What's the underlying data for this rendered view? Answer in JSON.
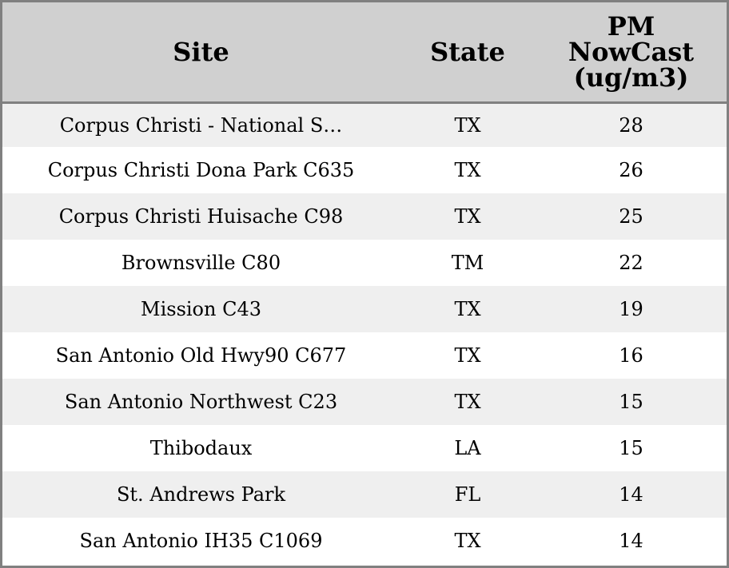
{
  "table": {
    "headers": {
      "site": "Site",
      "state": "State",
      "pm_lines": [
        "PM",
        "NowCast",
        "(ug/m3)"
      ]
    },
    "rows": [
      {
        "site": "Corpus Christi - National S…",
        "state": "TX",
        "pm": "28"
      },
      {
        "site": "Corpus Christi Dona Park C635",
        "state": "TX",
        "pm": "26"
      },
      {
        "site": "Corpus Christi Huisache C98",
        "state": "TX",
        "pm": "25"
      },
      {
        "site": "Brownsville C80",
        "state": "TM",
        "pm": "22"
      },
      {
        "site": "Mission C43",
        "state": "TX",
        "pm": "19"
      },
      {
        "site": "San Antonio Old Hwy90 C677",
        "state": "TX",
        "pm": "16"
      },
      {
        "site": "San Antonio Northwest C23",
        "state": "TX",
        "pm": "15"
      },
      {
        "site": "Thibodaux",
        "state": "LA",
        "pm": "15"
      },
      {
        "site": "St. Andrews Park",
        "state": "FL",
        "pm": "14"
      },
      {
        "site": "San Antonio IH35 C1069",
        "state": "TX",
        "pm": "14"
      }
    ]
  },
  "colors": {
    "header_bg": "#d0d0d0",
    "row_alt_bg": "#efefef",
    "row_bg": "#ffffff",
    "border": "#808080"
  }
}
